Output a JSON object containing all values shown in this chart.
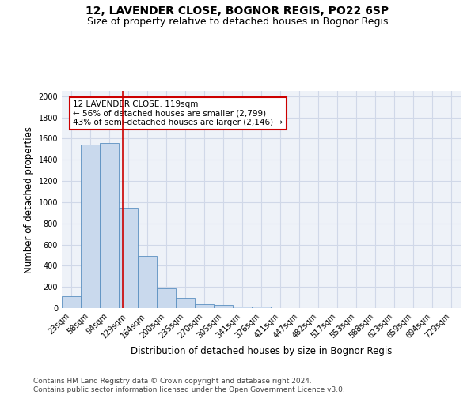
{
  "title": "12, LAVENDER CLOSE, BOGNOR REGIS, PO22 6SP",
  "subtitle": "Size of property relative to detached houses in Bognor Regis",
  "xlabel": "Distribution of detached houses by size in Bognor Regis",
  "ylabel": "Number of detached properties",
  "bar_labels": [
    "23sqm",
    "58sqm",
    "94sqm",
    "129sqm",
    "164sqm",
    "200sqm",
    "235sqm",
    "270sqm",
    "305sqm",
    "341sqm",
    "376sqm",
    "411sqm",
    "447sqm",
    "482sqm",
    "517sqm",
    "553sqm",
    "588sqm",
    "623sqm",
    "659sqm",
    "694sqm",
    "729sqm"
  ],
  "bar_values": [
    110,
    1540,
    1560,
    950,
    490,
    190,
    100,
    40,
    28,
    18,
    18,
    0,
    0,
    0,
    0,
    0,
    0,
    0,
    0,
    0,
    0
  ],
  "bar_color": "#c9d9ed",
  "bar_edge_color": "#5a8fc0",
  "grid_color": "#d0d8e8",
  "background_color": "#eef2f8",
  "vline_index": 2.71,
  "vline_color": "#cc0000",
  "annotation_text": "12 LAVENDER CLOSE: 119sqm\n← 56% of detached houses are smaller (2,799)\n43% of semi-detached houses are larger (2,146) →",
  "annotation_box_color": "#ffffff",
  "annotation_box_edge": "#cc0000",
  "ylim": [
    0,
    2050
  ],
  "yticks": [
    0,
    200,
    400,
    600,
    800,
    1000,
    1200,
    1400,
    1600,
    1800,
    2000
  ],
  "footer": "Contains HM Land Registry data © Crown copyright and database right 2024.\nContains public sector information licensed under the Open Government Licence v3.0.",
  "title_fontsize": 10,
  "subtitle_fontsize": 9,
  "xlabel_fontsize": 8.5,
  "ylabel_fontsize": 8.5,
  "tick_fontsize": 7,
  "annotation_fontsize": 7.5,
  "footer_fontsize": 6.5
}
